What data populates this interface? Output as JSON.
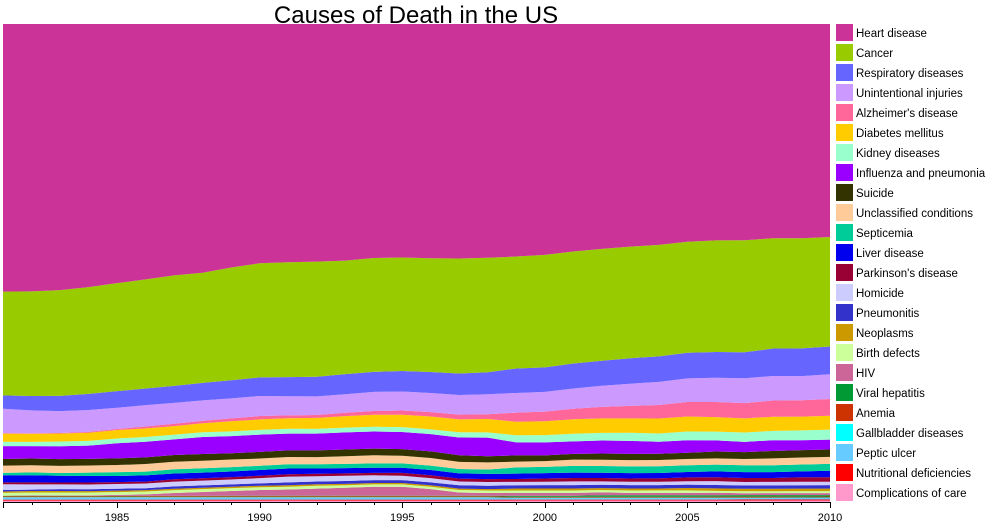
{
  "chart_data": {
    "type": "area",
    "title": "Causes of Death in the US",
    "xlabel": "",
    "ylabel": "",
    "x": [
      1981,
      1982,
      1983,
      1984,
      1985,
      1986,
      1987,
      1988,
      1989,
      1990,
      1991,
      1992,
      1993,
      1994,
      1995,
      1996,
      1997,
      1998,
      1999,
      2000,
      2001,
      2002,
      2003,
      2004,
      2005,
      2006,
      2007,
      2008,
      2009,
      2010
    ],
    "x_ticks": [
      "1985",
      "1990",
      "1995",
      "2000",
      "2005",
      "2010"
    ],
    "x_tick_values": [
      1985,
      1990,
      1995,
      2000,
      2005,
      2010
    ],
    "xlim": [
      1981,
      2010
    ],
    "ylim": [
      0,
      100
    ],
    "stacking": "normalized-percent",
    "legend_position": "right",
    "series": [
      {
        "name": "Complications of care",
        "color": "#ff99cc",
        "values": [
          0.3,
          0.3,
          0.3,
          0.3,
          0.3,
          0.3,
          0.3,
          0.3,
          0.3,
          0.3,
          0.3,
          0.3,
          0.3,
          0.3,
          0.3,
          0.3,
          0.3,
          0.3,
          0.3,
          0.3,
          0.3,
          0.3,
          0.3,
          0.3,
          0.3,
          0.3,
          0.3,
          0.3,
          0.3,
          0.3
        ]
      },
      {
        "name": "Nutritional deficiencies",
        "color": "#ff0000",
        "values": [
          0.2,
          0.2,
          0.2,
          0.2,
          0.2,
          0.2,
          0.2,
          0.2,
          0.2,
          0.2,
          0.2,
          0.2,
          0.2,
          0.2,
          0.2,
          0.2,
          0.2,
          0.2,
          0.2,
          0.2,
          0.2,
          0.2,
          0.2,
          0.2,
          0.2,
          0.2,
          0.2,
          0.2,
          0.2,
          0.2
        ]
      },
      {
        "name": "Peptic ulcer",
        "color": "#66ccff",
        "values": [
          0.4,
          0.4,
          0.4,
          0.4,
          0.4,
          0.4,
          0.4,
          0.4,
          0.4,
          0.4,
          0.4,
          0.4,
          0.4,
          0.4,
          0.4,
          0.4,
          0.4,
          0.4,
          0.3,
          0.3,
          0.3,
          0.3,
          0.3,
          0.3,
          0.3,
          0.3,
          0.3,
          0.3,
          0.3,
          0.3
        ]
      },
      {
        "name": "Gallbladder diseases",
        "color": "#00ffff",
        "values": [
          0.1,
          0.1,
          0.1,
          0.1,
          0.1,
          0.1,
          0.1,
          0.1,
          0.1,
          0.1,
          0.1,
          0.1,
          0.1,
          0.1,
          0.1,
          0.1,
          0.1,
          0.1,
          0.1,
          0.1,
          0.1,
          0.1,
          0.1,
          0.1,
          0.1,
          0.1,
          0.1,
          0.1,
          0.1,
          0.1
        ]
      },
      {
        "name": "Anemia",
        "color": "#cc3300",
        "values": [
          0.2,
          0.2,
          0.2,
          0.2,
          0.2,
          0.2,
          0.2,
          0.2,
          0.2,
          0.2,
          0.2,
          0.2,
          0.2,
          0.2,
          0.2,
          0.2,
          0.2,
          0.2,
          0.2,
          0.2,
          0.2,
          0.2,
          0.2,
          0.2,
          0.2,
          0.2,
          0.2,
          0.2,
          0.2,
          0.2
        ]
      },
      {
        "name": "Viral hepatitis",
        "color": "#009933",
        "values": [
          0.1,
          0.1,
          0.1,
          0.1,
          0.1,
          0.1,
          0.1,
          0.1,
          0.1,
          0.1,
          0.1,
          0.1,
          0.1,
          0.1,
          0.1,
          0.1,
          0.1,
          0.1,
          0.2,
          0.2,
          0.2,
          0.3,
          0.3,
          0.3,
          0.3,
          0.3,
          0.3,
          0.3,
          0.3,
          0.3
        ]
      },
      {
        "name": "HIV",
        "color": "#cc6699",
        "values": [
          0.0,
          0.1,
          0.1,
          0.1,
          0.2,
          0.3,
          0.6,
          0.8,
          1.0,
          1.2,
          1.3,
          1.5,
          1.7,
          1.9,
          1.9,
          1.4,
          0.7,
          0.6,
          0.6,
          0.6,
          0.6,
          0.6,
          0.5,
          0.5,
          0.5,
          0.5,
          0.4,
          0.4,
          0.4,
          0.4
        ]
      },
      {
        "name": "Birth defects",
        "color": "#ccff99",
        "values": [
          0.6,
          0.6,
          0.6,
          0.6,
          0.6,
          0.6,
          0.6,
          0.6,
          0.6,
          0.6,
          0.6,
          0.6,
          0.5,
          0.5,
          0.5,
          0.5,
          0.5,
          0.5,
          0.5,
          0.5,
          0.5,
          0.5,
          0.5,
          0.5,
          0.5,
          0.4,
          0.4,
          0.4,
          0.4,
          0.4
        ]
      },
      {
        "name": "Neoplasms",
        "color": "#cc9900",
        "values": [
          0.3,
          0.3,
          0.3,
          0.3,
          0.3,
          0.3,
          0.3,
          0.3,
          0.3,
          0.3,
          0.3,
          0.3,
          0.3,
          0.3,
          0.3,
          0.3,
          0.3,
          0.3,
          0.4,
          0.4,
          0.4,
          0.4,
          0.4,
          0.4,
          0.5,
          0.5,
          0.5,
          0.5,
          0.5,
          0.5
        ]
      },
      {
        "name": "Pneumonitis",
        "color": "#3333cc",
        "values": [
          0.3,
          0.3,
          0.4,
          0.4,
          0.4,
          0.4,
          0.5,
          0.5,
          0.5,
          0.5,
          0.6,
          0.6,
          0.6,
          0.6,
          0.6,
          0.6,
          0.7,
          0.7,
          0.7,
          0.7,
          0.7,
          0.7,
          0.7,
          0.7,
          0.7,
          0.7,
          0.7,
          0.7,
          0.7,
          0.7
        ]
      },
      {
        "name": "Homicide",
        "color": "#ccccff",
        "values": [
          1.2,
          1.1,
          1.0,
          1.0,
          1.0,
          1.0,
          1.0,
          1.0,
          1.0,
          1.1,
          1.2,
          1.1,
          1.1,
          1.0,
          0.9,
          0.9,
          0.8,
          0.8,
          0.7,
          0.7,
          0.8,
          0.7,
          0.7,
          0.7,
          0.7,
          0.8,
          0.7,
          0.7,
          0.7,
          0.7
        ]
      },
      {
        "name": "Parkinson's disease",
        "color": "#990033",
        "values": [
          0.4,
          0.4,
          0.4,
          0.4,
          0.4,
          0.4,
          0.5,
          0.5,
          0.5,
          0.5,
          0.5,
          0.5,
          0.5,
          0.5,
          0.6,
          0.6,
          0.6,
          0.6,
          0.6,
          0.7,
          0.7,
          0.7,
          0.7,
          0.7,
          0.8,
          0.8,
          0.8,
          0.8,
          0.9,
          0.9
        ]
      },
      {
        "name": "Liver disease",
        "color": "#0000ee",
        "values": [
          1.5,
          1.5,
          1.4,
          1.4,
          1.3,
          1.3,
          1.2,
          1.2,
          1.2,
          1.2,
          1.2,
          1.1,
          1.1,
          1.1,
          1.1,
          1.1,
          1.1,
          1.1,
          1.1,
          1.1,
          1.1,
          1.1,
          1.1,
          1.1,
          1.1,
          1.2,
          1.2,
          1.2,
          1.2,
          1.3
        ]
      },
      {
        "name": "Septicemia",
        "color": "#00cc99",
        "values": [
          0.5,
          0.6,
          0.6,
          0.7,
          0.8,
          0.8,
          0.9,
          0.9,
          0.9,
          0.9,
          0.9,
          0.9,
          0.9,
          0.9,
          0.9,
          0.9,
          0.9,
          0.9,
          1.3,
          1.3,
          1.4,
          1.4,
          1.4,
          1.4,
          1.4,
          1.4,
          1.4,
          1.4,
          1.4,
          1.4
        ]
      },
      {
        "name": "Unclassified conditions",
        "color": "#ffcc99",
        "values": [
          1.5,
          1.5,
          1.5,
          1.5,
          1.5,
          1.6,
          1.6,
          1.6,
          1.6,
          1.5,
          1.5,
          1.5,
          1.6,
          1.7,
          1.6,
          1.6,
          1.5,
          1.5,
          1.2,
          1.2,
          1.3,
          1.3,
          1.3,
          1.3,
          1.3,
          1.3,
          1.3,
          1.4,
          1.4,
          1.4
        ]
      },
      {
        "name": "Suicide",
        "color": "#333300",
        "values": [
          1.4,
          1.4,
          1.4,
          1.4,
          1.4,
          1.4,
          1.4,
          1.4,
          1.3,
          1.4,
          1.4,
          1.4,
          1.4,
          1.4,
          1.4,
          1.4,
          1.4,
          1.3,
          1.3,
          1.2,
          1.2,
          1.3,
          1.3,
          1.3,
          1.3,
          1.4,
          1.4,
          1.5,
          1.5,
          1.5
        ]
      },
      {
        "name": "Influenza and pneumonia",
        "color": "#9900ff",
        "values": [
          2.7,
          2.6,
          2.7,
          2.8,
          3.2,
          3.3,
          3.3,
          3.6,
          3.6,
          3.6,
          3.5,
          3.5,
          3.6,
          3.6,
          3.6,
          3.6,
          3.7,
          3.9,
          2.7,
          2.7,
          2.6,
          2.7,
          2.7,
          2.5,
          2.6,
          2.3,
          2.1,
          2.2,
          2.0,
          2.0
        ]
      },
      {
        "name": "Kidney diseases",
        "color": "#99ffcc",
        "values": [
          0.9,
          0.9,
          1.0,
          1.0,
          1.0,
          1.0,
          1.0,
          1.0,
          1.0,
          1.0,
          1.0,
          1.0,
          1.0,
          1.0,
          1.0,
          1.0,
          1.1,
          1.1,
          1.5,
          1.5,
          1.6,
          1.6,
          1.7,
          1.7,
          1.8,
          1.8,
          1.9,
          1.9,
          2.0,
          2.0
        ]
      },
      {
        "name": "Diabetes mellitus",
        "color": "#ffcc00",
        "values": [
          1.7,
          1.7,
          1.7,
          1.7,
          1.8,
          1.8,
          1.8,
          1.9,
          2.1,
          2.2,
          2.2,
          2.3,
          2.4,
          2.5,
          2.6,
          2.7,
          2.7,
          2.8,
          2.8,
          2.9,
          3.0,
          3.0,
          3.0,
          3.1,
          3.1,
          3.0,
          2.9,
          2.9,
          2.8,
          2.8
        ]
      },
      {
        "name": "Alzheimer's disease",
        "color": "#ff6699",
        "values": [
          0.1,
          0.1,
          0.1,
          0.2,
          0.2,
          0.4,
          0.5,
          0.5,
          0.6,
          0.7,
          0.6,
          0.6,
          0.7,
          0.8,
          0.9,
          0.9,
          1.0,
          1.0,
          1.9,
          2.0,
          2.2,
          2.4,
          2.6,
          2.8,
          3.0,
          3.1,
          3.1,
          3.3,
          3.3,
          3.4
        ]
      },
      {
        "name": "Unintentional injuries",
        "color": "#cc99ff",
        "values": [
          5.1,
          4.8,
          4.6,
          4.6,
          4.5,
          4.5,
          4.4,
          4.3,
          4.2,
          4.2,
          4.0,
          3.9,
          3.9,
          4.0,
          4.0,
          4.0,
          4.1,
          4.2,
          4.1,
          4.1,
          4.2,
          4.4,
          4.6,
          4.8,
          4.9,
          5.0,
          5.1,
          5.0,
          4.9,
          5.0
        ]
      },
      {
        "name": "Respiratory diseases",
        "color": "#6666ff",
        "values": [
          2.8,
          3.0,
          3.2,
          3.4,
          3.5,
          3.5,
          3.6,
          3.7,
          3.8,
          3.9,
          4.0,
          4.1,
          4.2,
          4.2,
          4.3,
          4.4,
          4.5,
          4.6,
          5.1,
          5.1,
          5.2,
          5.2,
          5.3,
          5.3,
          5.3,
          5.3,
          5.3,
          5.6,
          5.6,
          5.6
        ]
      },
      {
        "name": "Cancer",
        "color": "#99cc00",
        "values": [
          21.7,
          21.9,
          22.2,
          22.5,
          22.8,
          23.0,
          23.3,
          23.2,
          23.6,
          23.9,
          24.0,
          24.1,
          23.8,
          23.9,
          23.8,
          23.8,
          24.1,
          24.0,
          23.3,
          23.4,
          23.3,
          23.3,
          23.2,
          23.1,
          23.0,
          23.0,
          22.9,
          22.5,
          22.3,
          22.1
        ]
      },
      {
        "name": "Heart disease",
        "color": "#cc3399",
        "values": [
          56.0,
          56.0,
          55.9,
          55.5,
          54.7,
          53.8,
          53.0,
          52.4,
          51.0,
          50.1,
          49.8,
          49.7,
          49.6,
          49.1,
          49.0,
          49.0,
          49.1,
          49.0,
          48.4,
          48.0,
          47.3,
          46.8,
          46.3,
          45.8,
          45.1,
          44.6,
          44.2,
          43.7,
          43.4,
          43.0
        ]
      }
    ]
  }
}
